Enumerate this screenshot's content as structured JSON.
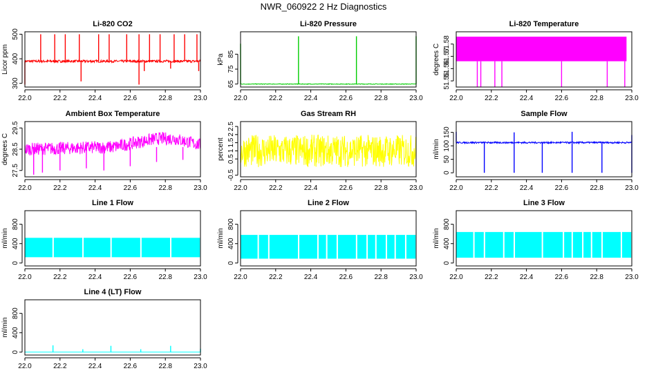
{
  "figure_title": "NWR_060922  2 Hz Diagnostics",
  "colors": {
    "red": "#ff0000",
    "green": "#00cd00",
    "magenta": "#ff00ff",
    "yellow": "#ffff00",
    "blue": "#0000ff",
    "cyan": "#00ffff"
  },
  "chart_data": [
    {
      "type": "line",
      "title": "Li-820 CO2",
      "ylabel": "Licor ppm",
      "color": "red",
      "xlim": [
        22.0,
        23.0
      ],
      "ylim": [
        285,
        510
      ],
      "xticks": [
        22.0,
        22.2,
        22.4,
        22.6,
        22.8,
        23.0
      ],
      "yticks": [
        300,
        400,
        500
      ],
      "base": 390,
      "noise": 5,
      "spikes_up": [
        [
          22.09,
          500
        ],
        [
          22.17,
          500
        ],
        [
          22.23,
          500
        ],
        [
          22.31,
          500
        ],
        [
          22.42,
          500
        ],
        [
          22.48,
          500
        ],
        [
          22.58,
          500
        ],
        [
          22.65,
          500
        ],
        [
          22.71,
          500
        ],
        [
          22.77,
          500
        ],
        [
          22.85,
          500
        ],
        [
          22.91,
          500
        ],
        [
          22.98,
          500
        ]
      ],
      "spikes_down": [
        [
          22.0,
          295
        ],
        [
          22.32,
          308
        ],
        [
          22.65,
          295
        ],
        [
          22.68,
          350
        ],
        [
          22.83,
          360
        ],
        [
          22.99,
          350
        ]
      ]
    },
    {
      "type": "line",
      "title": "Li-820 Pressure",
      "ylabel": "kPa",
      "color": "green",
      "xlim": [
        22.0,
        23.0
      ],
      "ylim": [
        63,
        100
      ],
      "xticks": [
        22.0,
        22.2,
        22.4,
        22.6,
        22.8,
        23.0
      ],
      "yticks": [
        65,
        75,
        85
      ],
      "base": 65,
      "noise": 0.2,
      "spikes_up": [
        [
          22.0,
          92
        ],
        [
          22.33,
          97
        ],
        [
          22.66,
          97
        ],
        [
          23.0,
          97
        ]
      ],
      "spikes_down": []
    },
    {
      "type": "line",
      "title": "Li-820 Temperature",
      "ylabel": "degrees C",
      "color": "magenta",
      "xlim": [
        22.0,
        23.0
      ],
      "ylim": [
        51.545,
        51.59
      ],
      "xticks": [
        22.0,
        22.2,
        22.4,
        22.6,
        22.8,
        23.0
      ],
      "yticks": [
        51.55,
        51.56,
        51.57,
        51.58
      ],
      "two_level": [
        51.566,
        51.586
      ],
      "spikes_up": [],
      "spikes_down": [
        [
          22.12,
          51.545
        ],
        [
          22.14,
          51.545
        ],
        [
          22.22,
          51.545
        ],
        [
          22.26,
          51.545
        ],
        [
          22.6,
          51.545
        ],
        [
          22.86,
          51.545
        ],
        [
          22.96,
          51.545
        ]
      ]
    },
    {
      "type": "line",
      "title": "Ambient Box Temperature",
      "ylabel": "degrees C",
      "color": "magenta",
      "xlim": [
        22.0,
        23.0
      ],
      "ylim": [
        27.2,
        29.8
      ],
      "xticks": [
        22.0,
        22.2,
        22.4,
        22.6,
        22.8,
        23.0
      ],
      "yticks": [
        27.5,
        28.5,
        29.5
      ],
      "base": 28.6,
      "noise": 0.3,
      "drift": [
        [
          22.0,
          28.5
        ],
        [
          22.5,
          28.6
        ],
        [
          22.75,
          29.0
        ],
        [
          22.85,
          29.0
        ],
        [
          23.0,
          28.7
        ]
      ],
      "spikes_up": [],
      "spikes_down": [
        [
          22.05,
          27.3
        ],
        [
          22.1,
          27.4
        ],
        [
          22.2,
          27.5
        ],
        [
          22.35,
          27.6
        ],
        [
          22.45,
          27.5
        ],
        [
          22.6,
          27.7
        ],
        [
          22.75,
          27.9
        ],
        [
          22.9,
          28.0
        ]
      ]
    },
    {
      "type": "line",
      "title": "Gas Stream RH",
      "ylabel": "percent",
      "color": "yellow",
      "xlim": [
        22.0,
        23.0
      ],
      "ylim": [
        -0.6,
        2.8
      ],
      "xticks": [
        22.0,
        22.2,
        22.4,
        22.6,
        22.8,
        23.0
      ],
      "yticks": [
        -0.5,
        0.5,
        1.0,
        1.5,
        2.0,
        2.5
      ],
      "base": 1.0,
      "noise": 1.0,
      "spikes_up": [],
      "spikes_down": []
    },
    {
      "type": "line",
      "title": "Sample Flow",
      "ylabel": "ml/min",
      "color": "blue",
      "xlim": [
        22.0,
        23.0
      ],
      "ylim": [
        -15,
        190
      ],
      "xticks": [
        22.0,
        22.2,
        22.4,
        22.6,
        22.8,
        23.0
      ],
      "yticks": [
        0,
        50,
        100,
        150
      ],
      "base": 112,
      "noise": 3,
      "spikes_up": [
        [
          22.0,
          152
        ],
        [
          22.33,
          150
        ],
        [
          22.66,
          152
        ],
        [
          23.0,
          140
        ]
      ],
      "spikes_down": [
        [
          22.16,
          0
        ],
        [
          22.33,
          0
        ],
        [
          22.49,
          0
        ],
        [
          22.66,
          0
        ],
        [
          22.83,
          0
        ],
        [
          23.0,
          0
        ]
      ]
    },
    {
      "type": "area",
      "title": "Line 1 Flow",
      "ylabel": "ml/min",
      "color": "cyan",
      "xlim": [
        22.0,
        23.0
      ],
      "ylim": [
        -60,
        1080
      ],
      "xticks": [
        22.0,
        22.2,
        22.4,
        22.6,
        22.8,
        23.0
      ],
      "yticks": [
        0,
        400,
        800
      ],
      "band": [
        120,
        520
      ],
      "gaps": [
        22.16,
        22.33,
        22.49,
        22.66,
        22.83
      ]
    },
    {
      "type": "area",
      "title": "Line 2 Flow",
      "ylabel": "ml/min",
      "color": "cyan",
      "xlim": [
        22.0,
        23.0
      ],
      "ylim": [
        -60,
        1080
      ],
      "xticks": [
        22.0,
        22.2,
        22.4,
        22.6,
        22.8,
        23.0
      ],
      "yticks": [
        0,
        400,
        800
      ],
      "band": [
        90,
        580
      ],
      "gaps": [
        22.1,
        22.16,
        22.33,
        22.44,
        22.49,
        22.55,
        22.66,
        22.72,
        22.77,
        22.83,
        22.88,
        22.94
      ]
    },
    {
      "type": "area",
      "title": "Line 3 Flow",
      "ylabel": "ml/min",
      "color": "cyan",
      "xlim": [
        22.0,
        23.0
      ],
      "ylim": [
        -60,
        1080
      ],
      "xticks": [
        22.0,
        22.2,
        22.4,
        22.6,
        22.8,
        23.0
      ],
      "yticks": [
        0,
        400,
        800
      ],
      "band": [
        110,
        640
      ],
      "gaps": [
        22.1,
        22.16,
        22.27,
        22.33,
        22.49,
        22.61,
        22.66,
        22.72,
        22.77,
        22.83,
        22.94
      ]
    },
    {
      "type": "line",
      "title": "Line 4 (LT) Flow",
      "ylabel": "ml/min",
      "color": "cyan",
      "xlim": [
        22.0,
        23.0
      ],
      "ylim": [
        -60,
        1080
      ],
      "xticks": [
        22.0,
        22.2,
        22.4,
        22.6,
        22.8,
        23.0
      ],
      "yticks": [
        0,
        400,
        800
      ],
      "base": 0,
      "noise": 0,
      "spikes_up": [
        [
          22.16,
          140
        ],
        [
          22.33,
          60
        ],
        [
          22.49,
          130
        ],
        [
          22.66,
          60
        ],
        [
          22.83,
          130
        ],
        [
          23.0,
          70
        ]
      ],
      "spikes_down": []
    }
  ]
}
